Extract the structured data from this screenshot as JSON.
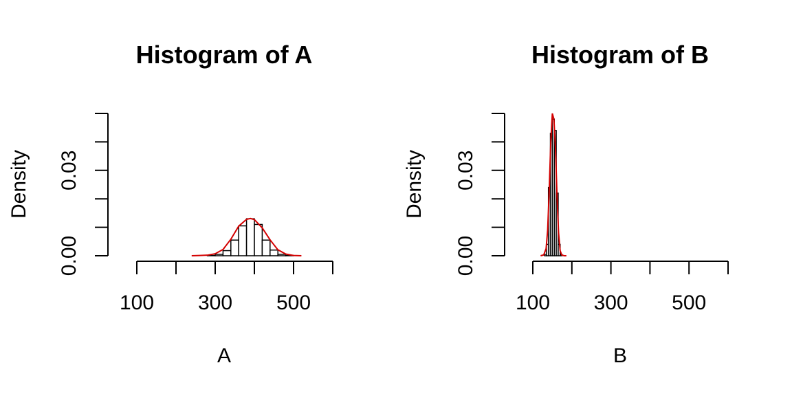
{
  "chart_data": [
    {
      "type": "bar",
      "title": "Histogram of A",
      "xlabel": "A",
      "ylabel": "Density",
      "xlim": [
        100,
        600
      ],
      "ylim": [
        0,
        0.05
      ],
      "x_ticks": [
        100,
        200,
        300,
        400,
        500,
        600
      ],
      "x_tick_labels": [
        "100",
        "",
        "300",
        "",
        "500",
        ""
      ],
      "y_ticks": [
        0.0,
        0.01,
        0.02,
        0.03,
        0.04,
        0.05
      ],
      "y_tick_labels": [
        "0.00",
        "",
        "",
        "0.03",
        "",
        ""
      ],
      "bins": [
        {
          "x0": 280,
          "x1": 300,
          "density": 0.0001
        },
        {
          "x0": 300,
          "x1": 320,
          "density": 0.0005
        },
        {
          "x0": 320,
          "x1": 340,
          "density": 0.0018
        },
        {
          "x0": 340,
          "x1": 360,
          "density": 0.0055
        },
        {
          "x0": 360,
          "x1": 380,
          "density": 0.0105
        },
        {
          "x0": 380,
          "x1": 400,
          "density": 0.013
        },
        {
          "x0": 400,
          "x1": 420,
          "density": 0.011
        },
        {
          "x0": 420,
          "x1": 440,
          "density": 0.0055
        },
        {
          "x0": 440,
          "x1": 460,
          "density": 0.002
        },
        {
          "x0": 460,
          "x1": 480,
          "density": 0.0005
        },
        {
          "x0": 480,
          "x1": 500,
          "density": 0.0001
        }
      ],
      "density_curve": {
        "color": "#d40000",
        "x": [
          240,
          260,
          280,
          300,
          320,
          340,
          360,
          380,
          390,
          400,
          420,
          440,
          460,
          480,
          500,
          520
        ],
        "y": [
          0.0,
          0.0001,
          0.0002,
          0.0007,
          0.0022,
          0.0058,
          0.0104,
          0.0128,
          0.0131,
          0.0127,
          0.0098,
          0.0056,
          0.0021,
          0.0006,
          0.0001,
          0.0
        ]
      }
    },
    {
      "type": "bar",
      "title": "Histogram of B",
      "xlabel": "B",
      "ylabel": "Density",
      "xlim": [
        100,
        600
      ],
      "ylim": [
        0,
        0.05
      ],
      "x_ticks": [
        100,
        200,
        300,
        400,
        500,
        600
      ],
      "x_tick_labels": [
        "100",
        "",
        "300",
        "",
        "500",
        ""
      ],
      "y_ticks": [
        0.0,
        0.01,
        0.02,
        0.03,
        0.04,
        0.05
      ],
      "y_tick_labels": [
        "0.00",
        "",
        "",
        "0.03",
        "",
        ""
      ],
      "bins": [
        {
          "x0": 130,
          "x1": 135,
          "density": 0.0005
        },
        {
          "x0": 135,
          "x1": 140,
          "density": 0.004
        },
        {
          "x0": 140,
          "x1": 145,
          "density": 0.024
        },
        {
          "x0": 145,
          "x1": 150,
          "density": 0.043
        },
        {
          "x0": 150,
          "x1": 155,
          "density": 0.048
        },
        {
          "x0": 155,
          "x1": 160,
          "density": 0.044
        },
        {
          "x0": 160,
          "x1": 165,
          "density": 0.022
        },
        {
          "x0": 165,
          "x1": 170,
          "density": 0.004
        },
        {
          "x0": 170,
          "x1": 175,
          "density": 0.0004
        }
      ],
      "density_curve": {
        "color": "#d40000",
        "x": [
          120,
          128,
          134,
          138,
          142,
          146,
          150,
          154,
          158,
          162,
          166,
          170,
          174,
          180,
          186
        ],
        "y": [
          0.0,
          0.0003,
          0.0025,
          0.009,
          0.023,
          0.04,
          0.05,
          0.048,
          0.038,
          0.021,
          0.008,
          0.0018,
          0.0003,
          0.0,
          0.0
        ]
      }
    }
  ]
}
